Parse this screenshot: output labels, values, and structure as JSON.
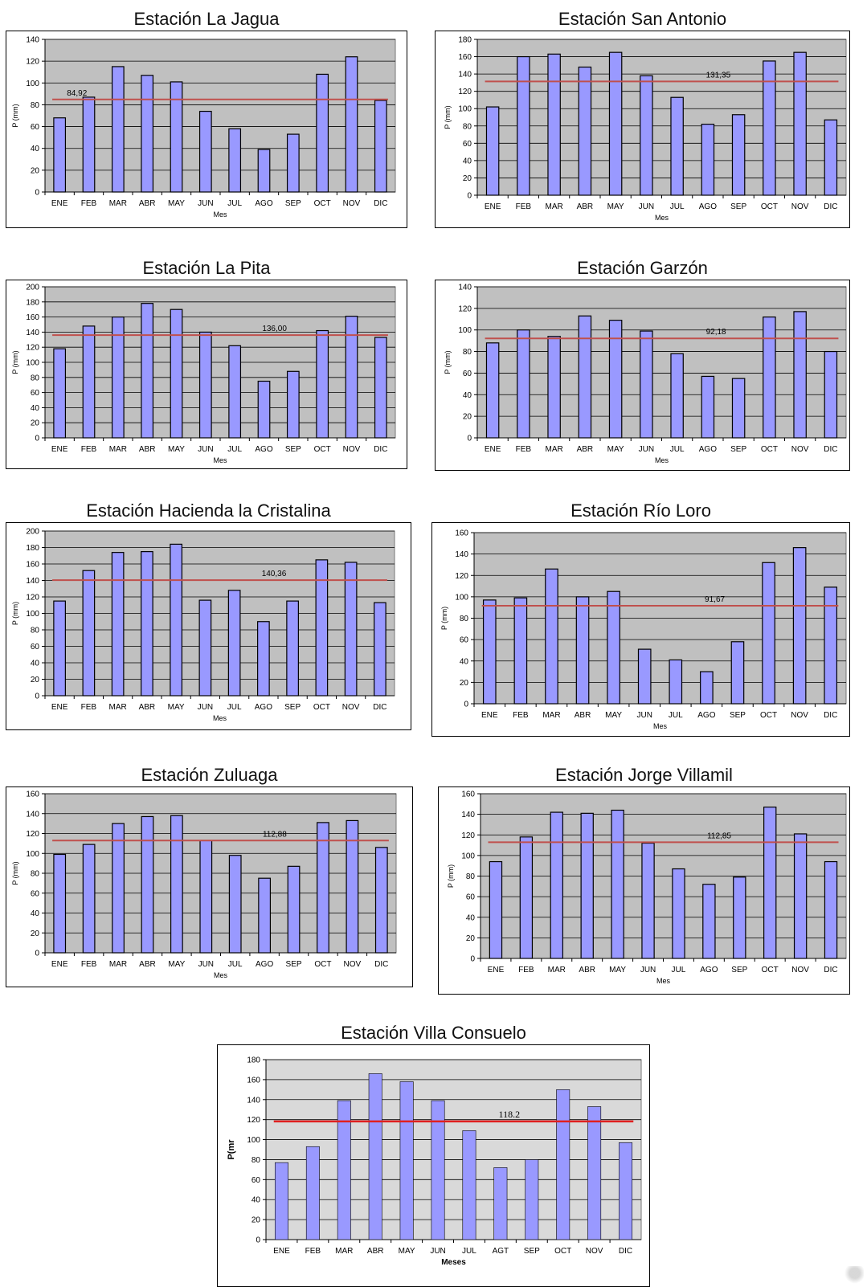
{
  "chart_data": [
    {
      "type": "bar",
      "title": "Estación La Jagua",
      "ylabel": "P (mm)",
      "xlabel": "Mes",
      "ylim": [
        0,
        140
      ],
      "ytick_step": 20,
      "categories": [
        "ENE",
        "FEB",
        "MAR",
        "ABR",
        "MAY",
        "JUN",
        "JUL",
        "AGO",
        "SEP",
        "OCT",
        "NOV",
        "DIC"
      ],
      "values": [
        68,
        87,
        115,
        107,
        101,
        74,
        58,
        39,
        53,
        108,
        124,
        84
      ],
      "mean": 84.92,
      "mean_label": "84,92",
      "plot_bg": "#c0c0c0",
      "grid": true
    },
    {
      "type": "bar",
      "title": "Estación San Antonio",
      "ylabel": "P (mm)",
      "xlabel": "Mes",
      "ylim": [
        0,
        180
      ],
      "ytick_step": 20,
      "categories": [
        "ENE",
        "FEB",
        "MAR",
        "ABR",
        "MAY",
        "JUN",
        "JUL",
        "AGO",
        "SEP",
        "OCT",
        "NOV",
        "DIC"
      ],
      "values": [
        102,
        160,
        163,
        148,
        165,
        138,
        113,
        82,
        93,
        155,
        165,
        87
      ],
      "mean": 131.35,
      "mean_label": "131,35",
      "plot_bg": "#c0c0c0",
      "grid": true
    },
    {
      "type": "bar",
      "title": "Estación La Pita",
      "ylabel": "P (mm)",
      "xlabel": "Mes",
      "ylim": [
        0,
        200
      ],
      "ytick_step": 20,
      "categories": [
        "ENE",
        "FEB",
        "MAR",
        "ABR",
        "MAY",
        "JUN",
        "JUL",
        "AGO",
        "SEP",
        "OCT",
        "NOV",
        "DIC"
      ],
      "values": [
        118,
        148,
        160,
        178,
        170,
        140,
        122,
        75,
        88,
        142,
        161,
        133
      ],
      "mean": 136.0,
      "mean_label": "136,00",
      "plot_bg": "#c0c0c0",
      "grid": true
    },
    {
      "type": "bar",
      "title": "Estación Garzón",
      "ylabel": "P (mm)",
      "xlabel": "Mes",
      "ylim": [
        0,
        140
      ],
      "ytick_step": 20,
      "categories": [
        "ENE",
        "FEB",
        "MAR",
        "ABR",
        "MAY",
        "JUN",
        "JUL",
        "AGO",
        "SEP",
        "OCT",
        "NOV",
        "DIC"
      ],
      "values": [
        88,
        100,
        94,
        113,
        109,
        99,
        78,
        57,
        55,
        112,
        117,
        80
      ],
      "mean": 92.18,
      "mean_label": "92,18",
      "plot_bg": "#c0c0c0",
      "grid": true
    },
    {
      "type": "bar",
      "title": "Estación Hacienda la Cristalina",
      "ylabel": "P (mm)",
      "xlabel": "Mes",
      "ylim": [
        0,
        200
      ],
      "ytick_step": 20,
      "categories": [
        "ENE",
        "FEB",
        "MAR",
        "ABR",
        "MAY",
        "JUN",
        "JUL",
        "AGO",
        "SEP",
        "OCT",
        "NOV",
        "DIC"
      ],
      "values": [
        115,
        152,
        174,
        175,
        184,
        116,
        128,
        90,
        115,
        165,
        162,
        113
      ],
      "mean": 140.36,
      "mean_label": "140,36",
      "plot_bg": "#c0c0c0",
      "grid": true
    },
    {
      "type": "bar",
      "title": "Estación Río Loro",
      "ylabel": "P (mm)",
      "xlabel": "Mes",
      "ylim": [
        0,
        160
      ],
      "ytick_step": 20,
      "categories": [
        "ENE",
        "FEB",
        "MAR",
        "ABR",
        "MAY",
        "JUN",
        "JUL",
        "AGO",
        "SEP",
        "OCT",
        "NOV",
        "DIC"
      ],
      "values": [
        97,
        99,
        126,
        100,
        105,
        51,
        41,
        30,
        58,
        132,
        146,
        109
      ],
      "mean": 91.67,
      "mean_label": "91,67",
      "plot_bg": "#c0c0c0",
      "grid": true
    },
    {
      "type": "bar",
      "title": "Estación Zuluaga",
      "ylabel": "P (mm)",
      "xlabel": "Mes",
      "ylim": [
        0,
        160
      ],
      "ytick_step": 20,
      "categories": [
        "ENE",
        "FEB",
        "MAR",
        "ABR",
        "MAY",
        "JUN",
        "JUL",
        "AGO",
        "SEP",
        "OCT",
        "NOV",
        "DIC"
      ],
      "values": [
        99,
        109,
        130,
        137,
        138,
        113,
        98,
        75,
        87,
        131,
        133,
        106
      ],
      "mean": 112.88,
      "mean_label": "112,88",
      "plot_bg": "#c0c0c0",
      "grid": true
    },
    {
      "type": "bar",
      "title": "Estación Jorge Villamil",
      "ylabel": "P (mm)",
      "xlabel": "Mes",
      "ylim": [
        0,
        160
      ],
      "ytick_step": 20,
      "categories": [
        "ENE",
        "FEB",
        "MAR",
        "ABR",
        "MAY",
        "JUN",
        "JUL",
        "AGO",
        "SEP",
        "OCT",
        "NOV",
        "DIC"
      ],
      "values": [
        94,
        118,
        142,
        141,
        144,
        112,
        87,
        72,
        79,
        147,
        121,
        94
      ],
      "mean": 112.85,
      "mean_label": "112,85",
      "plot_bg": "#c0c0c0",
      "grid": true
    },
    {
      "type": "bar",
      "title": "Estación Villa Consuelo",
      "ylabel": "P(mr",
      "xlabel": "Meses",
      "ylim": [
        0,
        180
      ],
      "ytick_step": 20,
      "categories": [
        "ENE",
        "FEB",
        "MAR",
        "ABR",
        "MAY",
        "JUN",
        "JUL",
        "AGT",
        "SEP",
        "OCT",
        "NOV",
        "DIC"
      ],
      "values": [
        77,
        93,
        139,
        166,
        158,
        139,
        109,
        72,
        80,
        150,
        133,
        97
      ],
      "mean": 118.2,
      "mean_label": "118.2",
      "plot_bg": "#d9d9d9",
      "grid": true
    }
  ],
  "colors": {
    "bar_fill": "#9999ff",
    "bar_stroke": "#000000",
    "mean_line": "#c0504d",
    "mean_line_last": "#e02020",
    "grid": "#000000"
  }
}
